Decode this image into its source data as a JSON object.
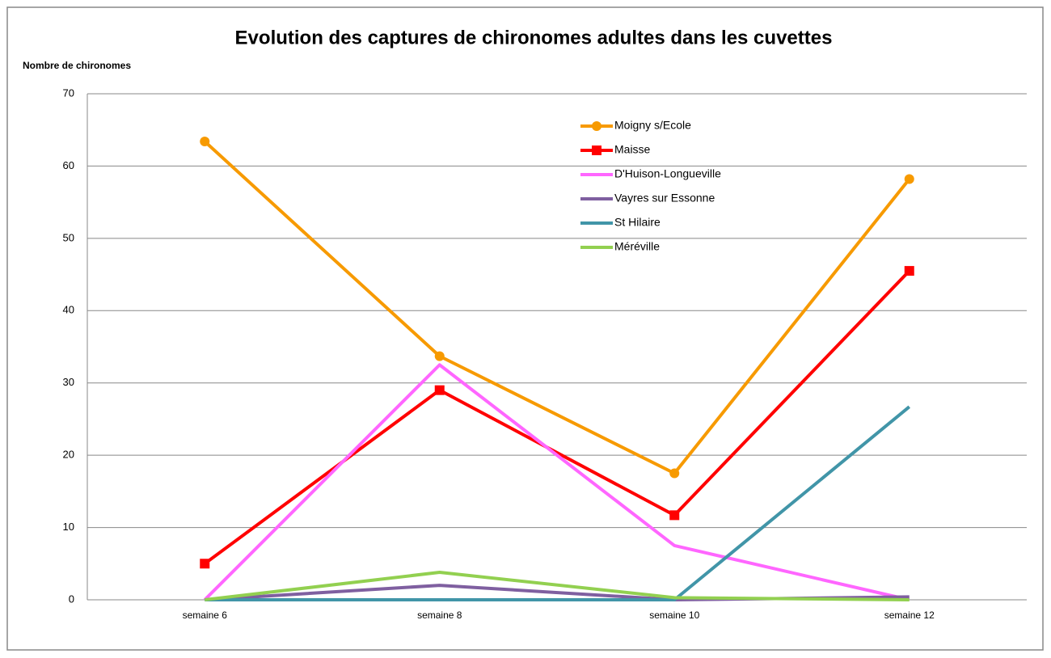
{
  "chart_data": {
    "type": "line",
    "title": "Evolution des captures de chironomes adultes dans les cuvettes",
    "y_label": "Nombre de chironomes",
    "categories": [
      "semaine 6",
      "semaine 8",
      "semaine 10",
      "semaine 12"
    ],
    "series": [
      {
        "name": "Moigny s/Ecole",
        "color": "#f79a00",
        "marker": "circle",
        "values": [
          63.4,
          33.7,
          17.5,
          58.2
        ]
      },
      {
        "name": "Maisse",
        "color": "#ff0000",
        "marker": "square",
        "values": [
          5,
          29,
          11.7,
          45.5
        ]
      },
      {
        "name": "D'Huison-Longueville",
        "color": "#ff66ff",
        "values": [
          0,
          32.5,
          7.5,
          0
        ]
      },
      {
        "name": "Vayres sur Essonne",
        "color": "#7f5fa0",
        "values": [
          0,
          2,
          0,
          0.4
        ]
      },
      {
        "name": "St Hilaire",
        "color": "#4195a8",
        "values": [
          0,
          0,
          0,
          26.7
        ]
      },
      {
        "name": "Méréville",
        "color": "#92d050",
        "values": [
          0,
          3.8,
          0.3,
          0
        ]
      }
    ],
    "ylim": [
      0,
      70
    ],
    "yticks": [
      0,
      10,
      20,
      30,
      40,
      50,
      60,
      70
    ],
    "grid": true,
    "legend": "upper right"
  }
}
